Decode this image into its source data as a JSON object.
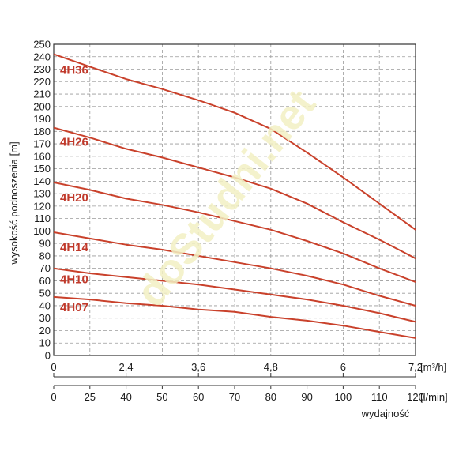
{
  "chart_data": {
    "type": "line",
    "ylabel": "wysokość podnoszenia [m]",
    "xlabel": "wydajność",
    "ylim": [
      0,
      250
    ],
    "yticks": [
      0,
      10,
      20,
      30,
      40,
      50,
      60,
      70,
      80,
      90,
      100,
      110,
      120,
      130,
      140,
      150,
      160,
      170,
      180,
      190,
      200,
      210,
      220,
      230,
      240,
      250
    ],
    "x_axis_m3h": {
      "unit": "[m³/h]",
      "ticks": [
        "0",
        "2,4",
        "3,6",
        "4,8",
        "6",
        "7,2"
      ],
      "values": [
        0,
        2.4,
        3.6,
        4.8,
        6.0,
        7.2
      ]
    },
    "x_axis_lmin": {
      "unit": "[l/min]",
      "ticks": [
        0,
        25,
        40,
        50,
        60,
        70,
        80,
        90,
        100,
        110,
        120
      ],
      "xlim": [
        0,
        120
      ]
    },
    "grid": true,
    "series": [
      {
        "name": "4H36",
        "x": [
          0,
          25,
          40,
          50,
          60,
          70,
          80,
          90,
          100,
          110,
          120
        ],
        "y": [
          242,
          232,
          222,
          214,
          205,
          195,
          182,
          163,
          143,
          122,
          101
        ]
      },
      {
        "name": "4H26",
        "x": [
          0,
          25,
          40,
          50,
          60,
          70,
          80,
          90,
          100,
          110,
          120
        ],
        "y": [
          183,
          175,
          166,
          159,
          151,
          143,
          134,
          122,
          107,
          93,
          78
        ]
      },
      {
        "name": "4H20",
        "x": [
          0,
          25,
          40,
          50,
          60,
          70,
          80,
          90,
          100,
          110,
          120
        ],
        "y": [
          139,
          133,
          126,
          121,
          115,
          108,
          101,
          92,
          82,
          70,
          59
        ]
      },
      {
        "name": "4H14",
        "x": [
          0,
          25,
          40,
          50,
          60,
          70,
          80,
          90,
          100,
          110,
          120
        ],
        "y": [
          99,
          94,
          89,
          85,
          80,
          75,
          70,
          64,
          57,
          48,
          40
        ]
      },
      {
        "name": "4H10",
        "x": [
          0,
          25,
          40,
          50,
          60,
          70,
          80,
          90,
          100,
          110,
          120
        ],
        "y": [
          70,
          66,
          63,
          60,
          57,
          53,
          49,
          45,
          40,
          34,
          27
        ]
      },
      {
        "name": "4H07",
        "x": [
          0,
          25,
          40,
          50,
          60,
          70,
          80,
          90,
          100,
          110,
          120
        ],
        "y": [
          47,
          45,
          42,
          40,
          37,
          35,
          31,
          28,
          24,
          19,
          14
        ]
      }
    ],
    "line_color": "#c9412b",
    "label_color": "#c0392b",
    "grid_color": "#9a9a9a"
  },
  "watermark": "doStudni.net"
}
